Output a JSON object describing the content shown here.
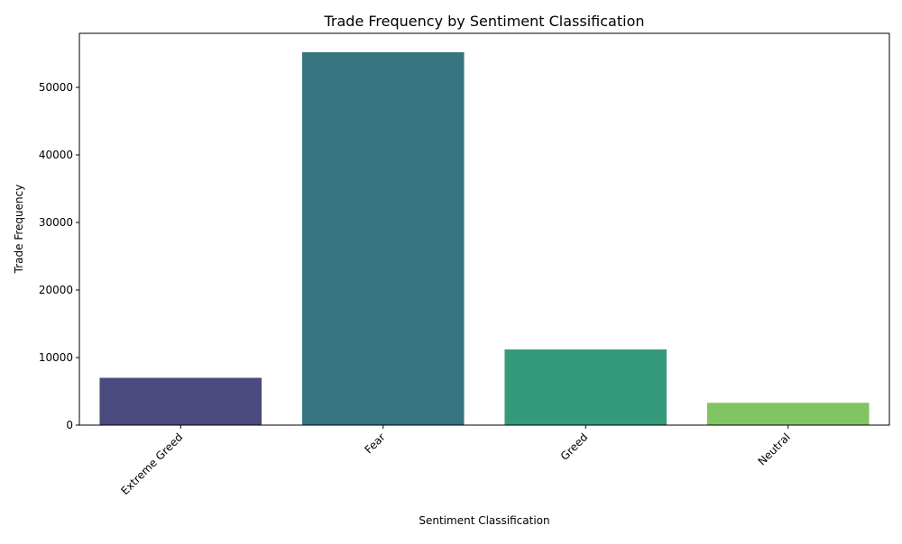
{
  "chart_data": {
    "type": "bar",
    "title": "Trade Frequency by Sentiment Classification",
    "xlabel": "Sentiment Classification",
    "ylabel": "Trade Frequency",
    "categories": [
      "Extreme Greed",
      "Fear",
      "Greed",
      "Neutral"
    ],
    "values": [
      7000,
      55200,
      11200,
      3300
    ],
    "colors": [
      "#4a4a7e",
      "#377580",
      "#35997c",
      "#80c463"
    ],
    "ylim": [
      0,
      58000
    ],
    "yticks": [
      0,
      10000,
      20000,
      30000,
      40000,
      50000
    ],
    "ytick_labels": [
      "0",
      "10000",
      "20000",
      "30000",
      "40000",
      "50000"
    ],
    "grid": false,
    "legend": "none"
  }
}
